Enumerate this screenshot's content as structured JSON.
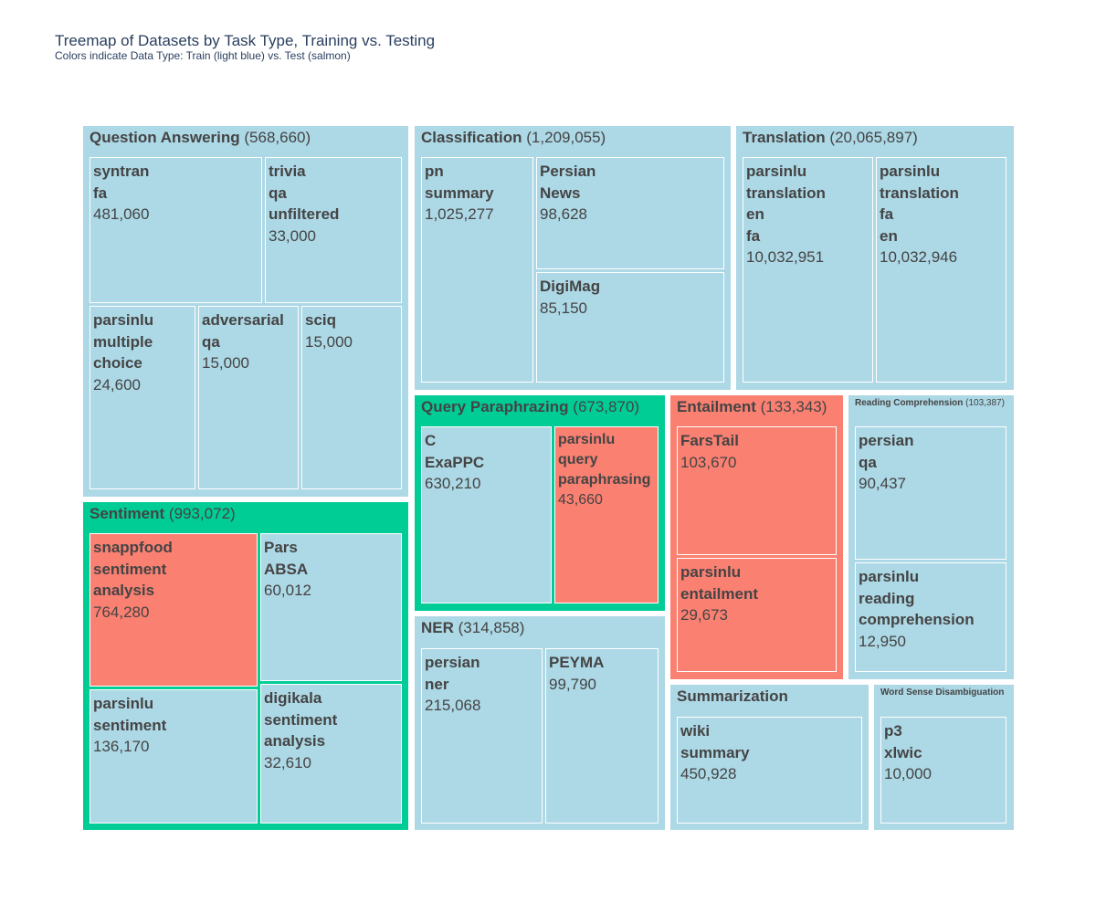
{
  "title": "Treemap of Datasets by Task Type, Training vs. Testing",
  "subtitle": "Colors indicate Data Type: Train (light blue) vs. Test (salmon)",
  "colors": {
    "train": "#add8e6",
    "test": "#fa8072",
    "mixed_group": "#00cc96",
    "text": "#444444"
  },
  "chart_data": {
    "type": "treemap",
    "groups": [
      {
        "name": "Question Answering",
        "total": "568,660",
        "value": 568660,
        "color": "#add8e6",
        "children": [
          {
            "lines": [
              "syntran",
              "fa"
            ],
            "value": 481060,
            "label": "481,060",
            "type": "train"
          },
          {
            "lines": [
              "trivia",
              "qa",
              "unfiltered"
            ],
            "value": 33000,
            "label": "33,000",
            "type": "train"
          },
          {
            "lines": [
              "parsinlu",
              "multiple",
              "choice"
            ],
            "value": 24600,
            "label": "24,600",
            "type": "train"
          },
          {
            "lines": [
              "adversarial",
              "qa"
            ],
            "value": 15000,
            "label": "15,000",
            "type": "train"
          },
          {
            "lines": [
              "sciq"
            ],
            "value": 15000,
            "label": "15,000",
            "type": "train"
          }
        ]
      },
      {
        "name": "Classification",
        "total": "1,209,055",
        "value": 1209055,
        "color": "#add8e6",
        "children": [
          {
            "lines": [
              "pn",
              "summary"
            ],
            "value": 1025277,
            "label": "1,025,277",
            "type": "train"
          },
          {
            "lines": [
              "Persian",
              "News"
            ],
            "value": 98628,
            "label": "98,628",
            "type": "train"
          },
          {
            "lines": [
              "DigiMag"
            ],
            "value": 85150,
            "label": "85,150",
            "type": "train"
          }
        ]
      },
      {
        "name": "Translation",
        "total": "20,065,897",
        "value": 20065897,
        "color": "#add8e6",
        "children": [
          {
            "lines": [
              "parsinlu",
              "translation",
              "en",
              "fa"
            ],
            "value": 10032951,
            "label": "10,032,951",
            "type": "train"
          },
          {
            "lines": [
              "parsinlu",
              "translation",
              "fa",
              "en"
            ],
            "value": 10032946,
            "label": "10,032,946",
            "type": "train"
          }
        ]
      },
      {
        "name": "Sentiment",
        "total": "993,072",
        "value": 993072,
        "color": "#00cc96",
        "children": [
          {
            "lines": [
              "snappfood",
              "sentiment",
              "analysis"
            ],
            "value": 764280,
            "label": "764,280",
            "type": "test"
          },
          {
            "lines": [
              "Pars",
              "ABSA"
            ],
            "value": 60012,
            "label": "60,012",
            "type": "train"
          },
          {
            "lines": [
              "parsinlu",
              "sentiment"
            ],
            "value": 136170,
            "label": "136,170",
            "type": "train"
          },
          {
            "lines": [
              "digikala",
              "sentiment",
              "analysis"
            ],
            "value": 32610,
            "label": "32,610",
            "type": "train"
          }
        ]
      },
      {
        "name": "Query Paraphrazing",
        "total": "673,870",
        "value": 673870,
        "color": "#00cc96",
        "children": [
          {
            "lines": [
              "C",
              "ExaPPC"
            ],
            "value": 630210,
            "label": "630,210",
            "type": "train"
          },
          {
            "lines": [
              "parsinlu",
              "query",
              "paraphrasing"
            ],
            "value": 43660,
            "label": "43,660",
            "type": "test"
          }
        ]
      },
      {
        "name": "Entailment",
        "total": "133,343",
        "value": 133343,
        "color": "#fa8072",
        "children": [
          {
            "lines": [
              "FarsTail"
            ],
            "value": 103670,
            "label": "103,670",
            "type": "test"
          },
          {
            "lines": [
              "parsinlu",
              "entailment"
            ],
            "value": 29673,
            "label": "29,673",
            "type": "test"
          }
        ]
      },
      {
        "name": "Reading Comprehension",
        "total": "103,387",
        "value": 103387,
        "color": "#add8e6",
        "children": [
          {
            "lines": [
              "persian",
              "qa"
            ],
            "value": 90437,
            "label": "90,437",
            "type": "train"
          },
          {
            "lines": [
              "parsinlu",
              "reading",
              "comprehension"
            ],
            "value": 12950,
            "label": "12,950",
            "type": "train"
          }
        ]
      },
      {
        "name": "NER",
        "total": "314,858",
        "value": 314858,
        "color": "#add8e6",
        "children": [
          {
            "lines": [
              "persian",
              "ner"
            ],
            "value": 215068,
            "label": "215,068",
            "type": "train"
          },
          {
            "lines": [
              "PEYMA"
            ],
            "value": 99790,
            "label": "99,790",
            "type": "train"
          }
        ]
      },
      {
        "name": "Summarization",
        "total": "",
        "value": 450928,
        "color": "#add8e6",
        "children": [
          {
            "lines": [
              "wiki",
              "summary"
            ],
            "value": 450928,
            "label": "450,928",
            "type": "train"
          }
        ]
      },
      {
        "name": "Word Sense Disambiguation",
        "total": "",
        "value": 10000,
        "color": "#add8e6",
        "children": [
          {
            "lines": [
              "p3",
              "xlwic"
            ],
            "value": 10000,
            "label": "10,000",
            "type": "train"
          }
        ]
      }
    ]
  }
}
